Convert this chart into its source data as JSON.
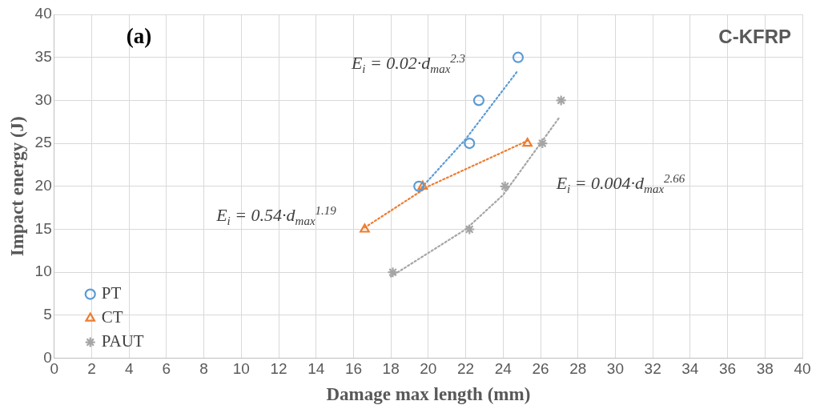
{
  "chart_data": {
    "type": "scatter",
    "xlabel": "Damage max length (mm)",
    "ylabel": "Impact energy (J)",
    "xlim": [
      0,
      40
    ],
    "xticks": [
      0,
      2,
      4,
      6,
      8,
      10,
      12,
      14,
      16,
      18,
      20,
      22,
      24,
      26,
      28,
      30,
      32,
      34,
      36,
      38,
      40
    ],
    "ylim": [
      0,
      40
    ],
    "yticks": [
      0,
      5,
      10,
      15,
      20,
      25,
      30,
      35,
      40
    ],
    "grid": true,
    "legend": "bottom left",
    "series": [
      {
        "name": "PT",
        "color": "#5b9bd5",
        "marker": "circle",
        "x": [
          19.5,
          22.2,
          22.7,
          24.8
        ],
        "values": [
          20,
          25,
          30,
          35
        ]
      },
      {
        "name": "CT",
        "color": "#ed7d31",
        "marker": "triangle",
        "x": [
          16.6,
          19.7,
          25.3
        ],
        "values": [
          15,
          20,
          25
        ]
      },
      {
        "name": "PAUT",
        "color": "#a5a5a5",
        "marker": "cross",
        "x": [
          18.1,
          22.2,
          24.1,
          26.1,
          27.1
        ],
        "values": [
          10,
          15,
          20,
          25,
          30
        ]
      },
      {
        "type": "line",
        "color": "#5b9bd5",
        "marker": "none",
        "line_style": "dotted",
        "x": [
          19.5,
          22,
          24.8
        ],
        "values": [
          19.5,
          25.5,
          33.5
        ]
      },
      {
        "type": "line",
        "color": "#ed7d31",
        "marker": "none",
        "line_style": "dotted",
        "x": [
          16.6,
          20,
          25.3
        ],
        "values": [
          15.2,
          20,
          25.3
        ]
      },
      {
        "type": "line",
        "color": "#a5a5a5",
        "marker": "none",
        "line_style": "dotted",
        "x": [
          18,
          22,
          24,
          27
        ],
        "values": [
          9.5,
          15,
          19,
          28
        ]
      }
    ],
    "annotations": [
      "(a)",
      "C-KFRP",
      "E$_{i}$ = 0.02·d$_{max}$$^{2.3}$",
      "E$_{i}$ = 0.54·d$_{max}$$^{1.19}$",
      "E$_{i}$ = 0.004·d$_{max}$$^{2.66}$"
    ]
  }
}
